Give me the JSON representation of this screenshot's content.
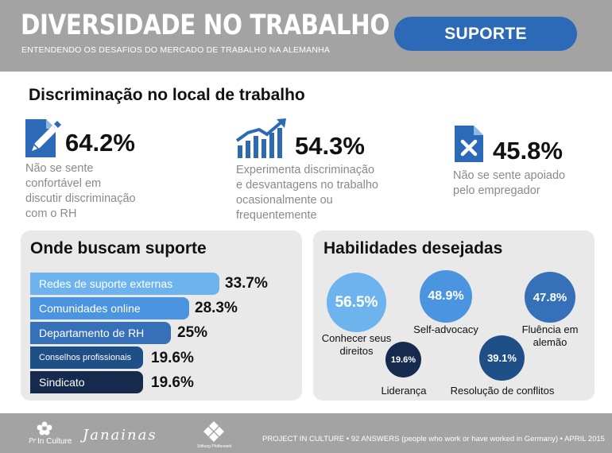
{
  "header": {
    "title": "DIVERSIDADE NO TRABALHO",
    "subtitle": "ENTENDENDO OS DESAFIOS DO MERCADO DE TRABALHO NA ALEMANHA",
    "button_label": "SUPORTE"
  },
  "section_title": "Discriminação no local de trabalho",
  "stats": [
    {
      "value": "64.2%",
      "line1": "Não se sente",
      "line2": "confortável em",
      "line3": "discutir discriminação",
      "line4": "com o RH",
      "icon": "document-pen-icon"
    },
    {
      "value": "54.3%",
      "line1": "Experimenta discriminação",
      "line2": "e desvantagens no trabalho",
      "line3": "ocasionalmente ou",
      "line4": "frequentemente",
      "icon": "rising-chart-icon"
    },
    {
      "value": "45.8%",
      "line1": "Não se sente apoiado",
      "line2": "pelo empregador",
      "icon": "document-x-icon"
    }
  ],
  "support": {
    "title": "Onde buscam suporte",
    "items": [
      {
        "label": "Redes de suporte externas",
        "value": "33.7%",
        "percent": 33.7,
        "color": "#6db4ef"
      },
      {
        "label": "Comunidades online",
        "value": "28.3%",
        "percent": 28.3,
        "color": "#4a94e0"
      },
      {
        "label": "Departamento de RH",
        "value": "25%",
        "percent": 25,
        "color": "#3570b8"
      },
      {
        "label": "Conselhos profissionais",
        "value": "19.6%",
        "percent": 19.6,
        "color": "#1f4f87"
      },
      {
        "label": "Sindicato",
        "value": "19.6%",
        "percent": 19.6,
        "color": "#152a4d"
      }
    ]
  },
  "skills": {
    "title": "Habilidades desejadas",
    "items": [
      {
        "value": "56.5%",
        "label1": "Conhecer seus",
        "label2": "direitos",
        "color": "#6db4ef"
      },
      {
        "value": "48.9%",
        "label1": "Self-advocacy",
        "label2": "",
        "color": "#4a94e0"
      },
      {
        "value": "47.8%",
        "label1": "Fluência em",
        "label2": "alemão",
        "color": "#3570b8"
      },
      {
        "value": "19.6%",
        "label1": "Liderança",
        "label2": "",
        "color": "#152a4d"
      },
      {
        "value": "39.1%",
        "label1": "Resolução de conflitos",
        "label2": "",
        "color": "#1f4f87"
      }
    ]
  },
  "footer": {
    "text": "PROJECT IN CULTURE • 92 ANSWERS (people who work or have worked in Germany) • APRIL 2015",
    "logo1": "In Culture",
    "logo1_prefix": "Pr",
    "logo2": "Janainas",
    "logo3": "Stiftung Pfefferwerk"
  },
  "colors": {
    "header_bg": "#a3a3a3",
    "button": "#2c6ab8",
    "icon_blue": "#2c6ab8",
    "panel_bg": "#e9e9e9"
  }
}
